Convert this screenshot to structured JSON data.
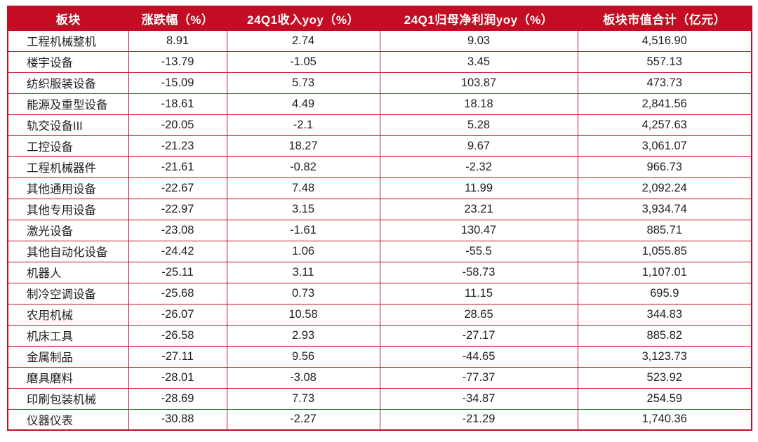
{
  "colors": {
    "accent": "#c30d23",
    "header_text": "#ffffff",
    "body_text": "#1f1f1f",
    "row_background": "#ffffff"
  },
  "chart_data": {
    "type": "table",
    "title": "",
    "columns": [
      "板块",
      "涨跌幅（%）",
      "24Q1收入yoy（%）",
      "24Q1归母净利润yoy（%）",
      "板块市值合计（亿元）"
    ],
    "rows": [
      [
        "工程机械整机",
        "8.91",
        "2.74",
        "9.03",
        "4,516.90"
      ],
      [
        "楼宇设备",
        "-13.79",
        "-1.05",
        "3.45",
        "557.13"
      ],
      [
        "纺织服装设备",
        "-15.09",
        "5.73",
        "103.87",
        "473.73"
      ],
      [
        "能源及重型设备",
        "-18.61",
        "4.49",
        "18.18",
        "2,841.56"
      ],
      [
        "轨交设备III",
        "-20.05",
        "-2.1",
        "5.28",
        "4,257.63"
      ],
      [
        "工控设备",
        "-21.23",
        "18.27",
        "9.67",
        "3,061.07"
      ],
      [
        "工程机械器件",
        "-21.61",
        "-0.82",
        "-2.32",
        "966.73"
      ],
      [
        "其他通用设备",
        "-22.67",
        "7.48",
        "11.99",
        "2,092.24"
      ],
      [
        "其他专用设备",
        "-22.97",
        "3.15",
        "23.21",
        "3,934.74"
      ],
      [
        "激光设备",
        "-23.08",
        "-1.61",
        "130.47",
        "885.71"
      ],
      [
        "其他自动化设备",
        "-24.42",
        "1.06",
        "-55.5",
        "1,055.85"
      ],
      [
        "机器人",
        "-25.11",
        "3.11",
        "-58.73",
        "1,107.01"
      ],
      [
        "制冷空调设备",
        "-25.68",
        "0.73",
        "11.15",
        "695.9"
      ],
      [
        "农用机械",
        "-26.07",
        "10.58",
        "28.65",
        "344.83"
      ],
      [
        "机床工具",
        "-26.58",
        "2.93",
        "-27.17",
        "885.82"
      ],
      [
        "金属制品",
        "-27.11",
        "9.56",
        "-44.65",
        "3,123.73"
      ],
      [
        "磨具磨料",
        "-28.01",
        "-3.08",
        "-77.37",
        "523.92"
      ],
      [
        "印刷包装机械",
        "-28.69",
        "7.73",
        "-34.87",
        "254.59"
      ],
      [
        "仪器仪表",
        "-30.88",
        "-2.27",
        "-21.29",
        "1,740.36"
      ]
    ]
  }
}
